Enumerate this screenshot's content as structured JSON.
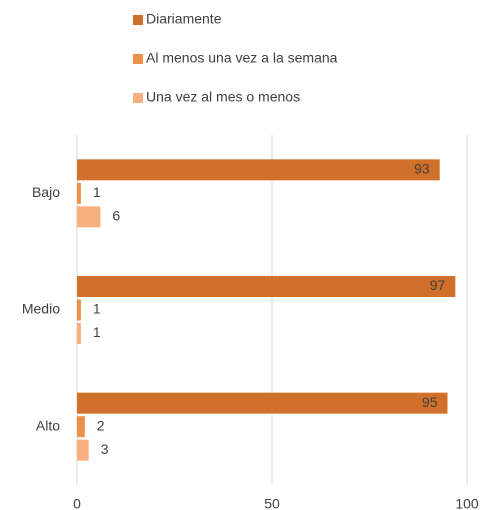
{
  "chart_data": {
    "type": "bar",
    "orientation": "horizontal",
    "categories": [
      "Bajo",
      "Medio",
      "Alto"
    ],
    "series": [
      {
        "name": "Diariamente",
        "color": "#d0702a",
        "values": [
          93,
          97,
          95
        ]
      },
      {
        "name": "Al menos una vez a la semana",
        "color": "#ec9148",
        "values": [
          1,
          1,
          2
        ]
      },
      {
        "name": "Una vez al mes o menos",
        "color": "#f8b07e",
        "values": [
          6,
          1,
          3
        ]
      }
    ],
    "xlim": [
      0,
      100
    ],
    "xticks": [
      0,
      50,
      100
    ],
    "grid": true,
    "legend": "top"
  }
}
